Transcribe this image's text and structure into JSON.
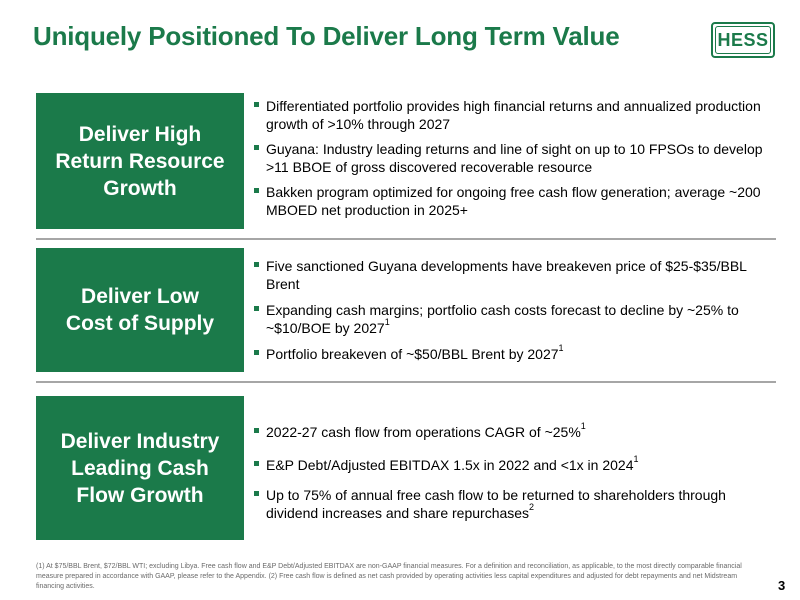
{
  "title": "Uniquely Positioned To Deliver Long Term Value",
  "logo": {
    "text": "HESS"
  },
  "sections": [
    {
      "heading": "Deliver High\nReturn Resource\nGrowth",
      "bullets": [
        {
          "text": "Differentiated portfolio provides high financial returns and annualized production growth of >10% through 2027",
          "sup": ""
        },
        {
          "text": "Guyana: Industry leading returns and line of sight on up to 10 FPSOs to develop >11 BBOE of gross discovered recoverable resource",
          "sup": ""
        },
        {
          "text": "Bakken program optimized for ongoing free cash flow generation; average ~200 MBOED net production in 2025+",
          "sup": ""
        }
      ]
    },
    {
      "heading": "Deliver Low\nCost of Supply",
      "bullets": [
        {
          "text": "Five sanctioned Guyana developments have breakeven price of $25-$35/BBL Brent",
          "sup": ""
        },
        {
          "text": "Expanding cash margins; portfolio cash costs forecast to decline by ~25% to ~$10/BOE by 2027",
          "sup": "1"
        },
        {
          "text": "Portfolio breakeven of ~$50/BBL Brent by 2027",
          "sup": "1"
        }
      ]
    },
    {
      "heading": "Deliver Industry\nLeading Cash\nFlow Growth",
      "bullets": [
        {
          "text": "2022-27 cash flow from operations CAGR of ~25%",
          "sup": "1"
        },
        {
          "text": "E&P Debt/Adjusted EBITDAX 1.5x in 2022 and <1x in 2024",
          "sup": "1"
        },
        {
          "text": "Up to 75% of annual free cash flow to be returned to shareholders through dividend increases and share repurchases",
          "sup": "2"
        }
      ]
    }
  ],
  "footnote": "(1) At $75/BBL Brent, $72/BBL WTI; excluding Libya. Free cash flow and E&P Debt/Adjusted EBITDAX are non-GAAP financial measures. For a definition and reconciliation, as applicable, to the most directly comparable financial measure prepared in accordance with GAAP, please refer to the Appendix. (2) Free cash flow is defined as net cash provided by operating activities less capital expenditures and adjusted for debt repayments and net Midstream financing activities.",
  "page_number": "3",
  "colors": {
    "brand_green": "#1b7a4a",
    "divider_gray": "#a6a6a6"
  }
}
